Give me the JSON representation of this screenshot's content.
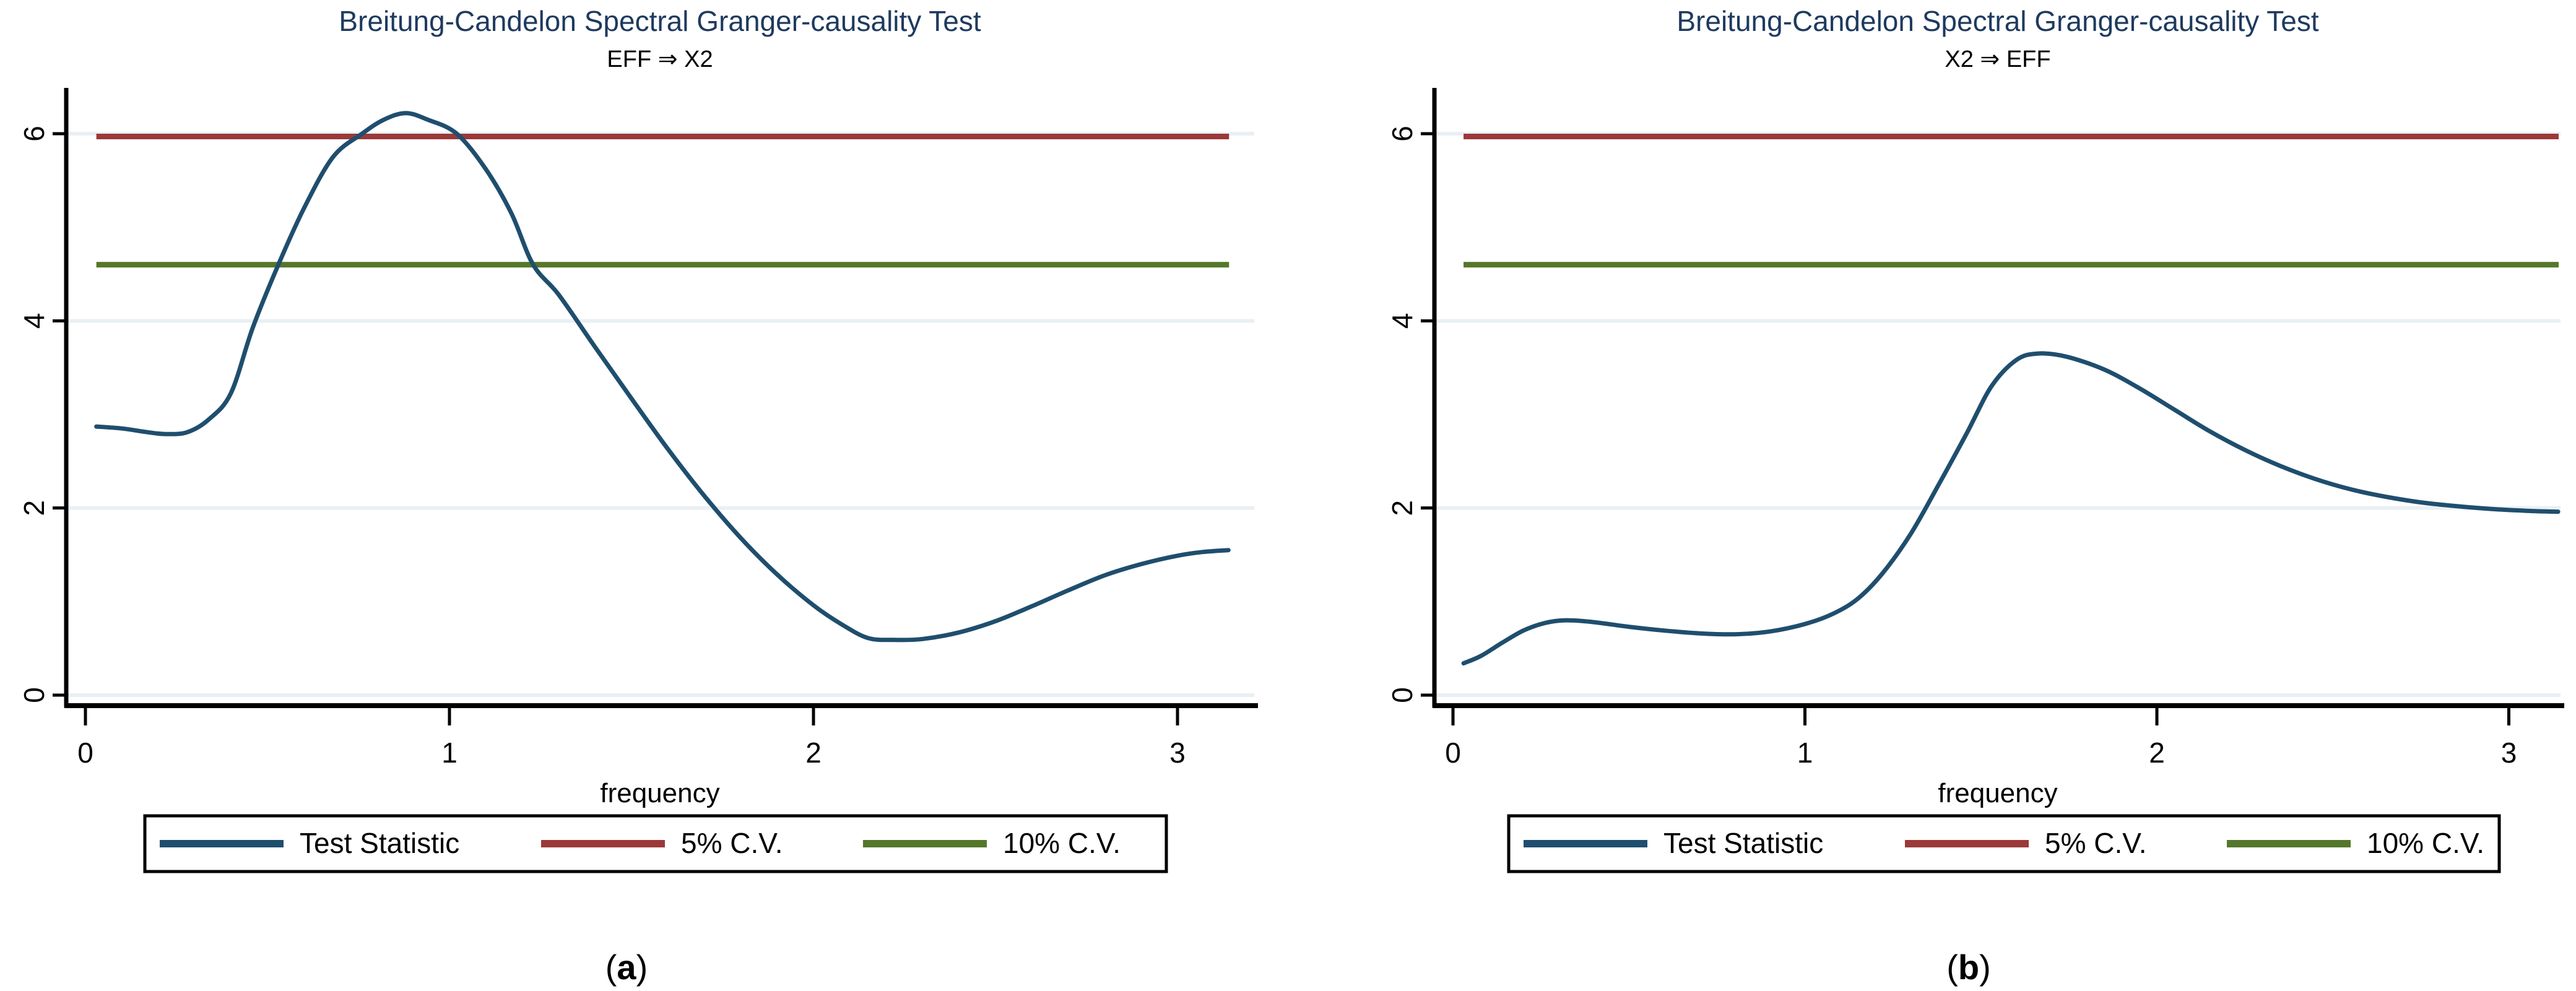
{
  "figure_title": "Breitung-Candelon Spectral Granger-causality Test",
  "colors": {
    "test_statistic": "#1f4e6e",
    "cv5": "#9b3938",
    "cv10": "#55772b",
    "grid": "#e9f0f4",
    "title": "#1e3a5f",
    "axis": "#000000",
    "background": "#ffffff"
  },
  "legend": {
    "items": [
      {
        "label": "Test Statistic",
        "color_key": "test_statistic"
      },
      {
        "label": "5% C.V.",
        "color_key": "cv5"
      },
      {
        "label": "10% C.V.",
        "color_key": "cv10"
      }
    ]
  },
  "chart_data": [
    {
      "type": "line",
      "title": "Breitung-Candelon Spectral Granger-causality Test",
      "subtitle": "EFF ⇒ X2",
      "xlabel": "frequency",
      "ylabel": "",
      "caption_open": "(",
      "caption_letter": "a",
      "caption_close": ")",
      "xlim": [
        0,
        3.2
      ],
      "ylim": [
        0,
        6.5
      ],
      "x_ticks": [
        0,
        1,
        2,
        3
      ],
      "y_ticks": [
        0,
        2,
        4,
        6
      ],
      "grid": true,
      "legend_position": "bottom",
      "x_range_shown": [
        0.03,
        3.1416
      ],
      "series": [
        {
          "name": "Test Statistic",
          "kind": "curve",
          "color_key": "test_statistic",
          "x": [
            0.03,
            0.1,
            0.17,
            0.22,
            0.28,
            0.34,
            0.4,
            0.46,
            0.53,
            0.6,
            0.68,
            0.76,
            0.82,
            0.88,
            0.94,
            1.02,
            1.1,
            1.17,
            1.23,
            1.3,
            1.4,
            1.5,
            1.6,
            1.7,
            1.8,
            1.9,
            2.0,
            2.08,
            2.15,
            2.22,
            2.3,
            2.4,
            2.5,
            2.6,
            2.7,
            2.8,
            2.9,
            3.0,
            3.07,
            3.14
          ],
          "y": [
            2.87,
            2.85,
            2.81,
            2.79,
            2.81,
            2.95,
            3.23,
            3.93,
            4.6,
            5.2,
            5.75,
            6.0,
            6.15,
            6.22,
            6.15,
            6.0,
            5.62,
            5.15,
            4.6,
            4.28,
            3.72,
            3.17,
            2.63,
            2.13,
            1.68,
            1.29,
            0.96,
            0.75,
            0.61,
            0.59,
            0.6,
            0.67,
            0.79,
            0.95,
            1.12,
            1.28,
            1.4,
            1.49,
            1.53,
            1.55
          ]
        },
        {
          "name": "5% C.V.",
          "kind": "hline",
          "color_key": "cv5",
          "value": 5.97
        },
        {
          "name": "10% C.V.",
          "kind": "hline",
          "color_key": "cv10",
          "value": 4.6
        }
      ]
    },
    {
      "type": "line",
      "title": "Breitung-Candelon Spectral Granger-causality Test",
      "subtitle": "X2 ⇒ EFF",
      "xlabel": "frequency",
      "ylabel": "",
      "caption_open": "(",
      "caption_letter": "b",
      "caption_close": ")",
      "xlim": [
        0,
        3.2
      ],
      "ylim": [
        0,
        6.5
      ],
      "x_ticks": [
        0,
        1,
        2,
        3
      ],
      "y_ticks": [
        0,
        2,
        4,
        6
      ],
      "grid": true,
      "legend_position": "bottom",
      "x_range_shown": [
        0.03,
        3.1416
      ],
      "series": [
        {
          "name": "Test Statistic",
          "kind": "curve",
          "color_key": "test_statistic",
          "x": [
            0.03,
            0.08,
            0.14,
            0.2,
            0.26,
            0.32,
            0.4,
            0.5,
            0.6,
            0.7,
            0.8,
            0.9,
            1.0,
            1.08,
            1.15,
            1.22,
            1.3,
            1.38,
            1.46,
            1.53,
            1.6,
            1.66,
            1.74,
            1.85,
            1.95,
            2.05,
            2.15,
            2.25,
            2.35,
            2.45,
            2.55,
            2.65,
            2.75,
            2.85,
            2.95,
            3.05,
            3.14
          ],
          "y": [
            0.34,
            0.42,
            0.56,
            0.69,
            0.77,
            0.8,
            0.78,
            0.73,
            0.69,
            0.66,
            0.65,
            0.68,
            0.76,
            0.87,
            1.03,
            1.3,
            1.72,
            2.25,
            2.8,
            3.3,
            3.58,
            3.65,
            3.62,
            3.48,
            3.28,
            3.05,
            2.82,
            2.62,
            2.45,
            2.31,
            2.2,
            2.12,
            2.06,
            2.02,
            1.99,
            1.97,
            1.96
          ]
        },
        {
          "name": "5% C.V.",
          "kind": "hline",
          "color_key": "cv5",
          "value": 5.97
        },
        {
          "name": "10% C.V.",
          "kind": "hline",
          "color_key": "cv10",
          "value": 4.6
        }
      ]
    }
  ]
}
